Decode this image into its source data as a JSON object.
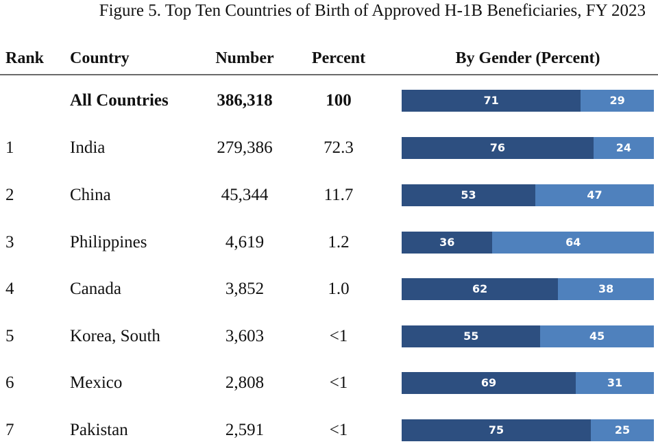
{
  "colors": {
    "primary_segment": "#2d4f80",
    "secondary_segment": "#4f81bd"
  },
  "chart_data": {
    "type": "table",
    "title": "Figure 5. Top Ten Countries of Birth of Approved H-1B Beneficiaries, FY 2023",
    "columns": [
      "Rank",
      "Country",
      "Number",
      "Percent",
      "By Gender (Percent)"
    ],
    "rows": [
      {
        "rank": "",
        "country": "All Countries",
        "number": "386,318",
        "percent": "100",
        "gender": [
          71,
          29
        ],
        "gender_labels": [
          "71",
          "29"
        ],
        "total": true
      },
      {
        "rank": "1",
        "country": "India",
        "number": "279,386",
        "percent": "72.3",
        "gender": [
          76,
          24
        ],
        "gender_labels": [
          "76",
          "24"
        ]
      },
      {
        "rank": "2",
        "country": "China",
        "number": "45,344",
        "percent": "11.7",
        "gender": [
          53,
          47
        ],
        "gender_labels": [
          "53",
          "47"
        ]
      },
      {
        "rank": "3",
        "country": "Philippines",
        "number": "4,619",
        "percent": "1.2",
        "gender": [
          36,
          64
        ],
        "gender_labels": [
          "36",
          "64"
        ]
      },
      {
        "rank": "4",
        "country": "Canada",
        "number": "3,852",
        "percent": "1.0",
        "gender": [
          62,
          38
        ],
        "gender_labels": [
          "62",
          "38"
        ]
      },
      {
        "rank": "5",
        "country": "Korea, South",
        "number": "3,603",
        "percent": "<1",
        "gender": [
          55,
          45
        ],
        "gender_labels": [
          "55",
          "45"
        ]
      },
      {
        "rank": "6",
        "country": "Mexico",
        "number": "2,808",
        "percent": "<1",
        "gender": [
          69,
          31
        ],
        "gender_labels": [
          "69",
          "31"
        ]
      },
      {
        "rank": "7",
        "country": "Pakistan",
        "number": "2,591",
        "percent": "<1",
        "gender": [
          75,
          25
        ],
        "gender_labels": [
          "75",
          "25"
        ]
      }
    ]
  }
}
